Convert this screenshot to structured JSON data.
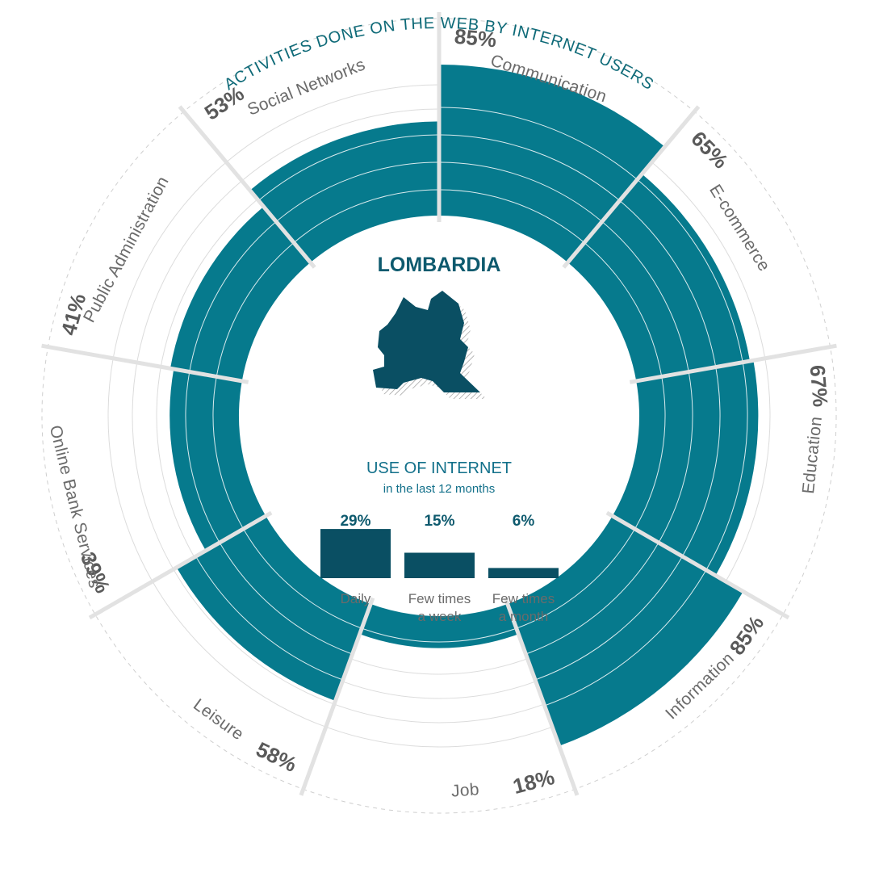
{
  "chart_data": [
    {
      "type": "radial-bar",
      "title": "ACTIVITIES DONE ON THE WEB BY INTERNET USERS",
      "center_label": "LOMBARDIA",
      "unit": "%",
      "categories": [
        "Communication",
        "E-commerce",
        "Education",
        "Information",
        "Job",
        "Leisure",
        "Online Bank Services",
        "Public Administration",
        "Social Networks"
      ],
      "values": [
        85,
        65,
        67,
        85,
        18,
        58,
        39,
        41,
        53
      ],
      "value_labels": [
        "85%",
        "65%",
        "67%",
        "85%",
        "18%",
        "58%",
        "39%",
        "41%",
        "53%"
      ],
      "colors": {
        "bar": "#067a8d",
        "ring_line": "#ffffff",
        "guide": "#dcdcdc",
        "divider": "#e2e2e2"
      }
    },
    {
      "type": "bar",
      "title": "USE OF INTERNET",
      "subtitle": "in the last 12 months",
      "categories": [
        "Daily",
        "Few times a week",
        "Few times a month"
      ],
      "category_lines": [
        [
          "Daily"
        ],
        [
          "Few times",
          "a week"
        ],
        [
          "Few times",
          "a month"
        ]
      ],
      "values": [
        29,
        15,
        6
      ],
      "value_labels": [
        "29%",
        "15%",
        "6%"
      ],
      "colors": {
        "bar": "#0a4f63"
      }
    }
  ]
}
